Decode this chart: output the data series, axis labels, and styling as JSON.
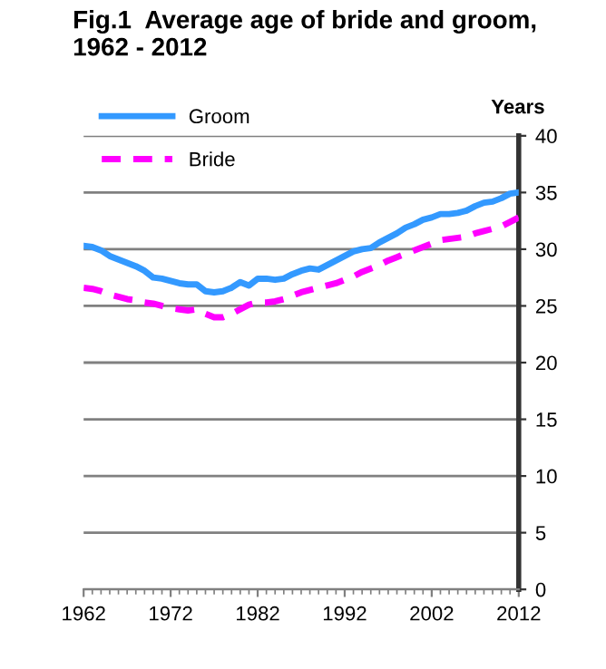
{
  "chart_data": {
    "type": "line",
    "title": "Fig.1  Average age of bride and groom,\n1962 - 2012",
    "ylabel": "Years",
    "x": [
      1962,
      1963,
      1964,
      1965,
      1966,
      1967,
      1968,
      1969,
      1970,
      1971,
      1972,
      1973,
      1974,
      1975,
      1976,
      1977,
      1978,
      1979,
      1980,
      1981,
      1982,
      1983,
      1984,
      1985,
      1986,
      1987,
      1988,
      1989,
      1990,
      1991,
      1992,
      1993,
      1994,
      1995,
      1996,
      1997,
      1998,
      1999,
      2000,
      2001,
      2002,
      2003,
      2004,
      2005,
      2006,
      2007,
      2008,
      2009,
      2010,
      2011,
      2012
    ],
    "series": [
      {
        "name": "Groom",
        "color": "#3399ff",
        "line_style": "solid",
        "values": [
          30.3,
          30.2,
          29.9,
          29.4,
          29.1,
          28.8,
          28.5,
          28.1,
          27.5,
          27.4,
          27.2,
          27.0,
          26.9,
          26.9,
          26.3,
          26.2,
          26.3,
          26.6,
          27.1,
          26.8,
          27.4,
          27.4,
          27.3,
          27.4,
          27.8,
          28.1,
          28.3,
          28.2,
          28.6,
          29.0,
          29.4,
          29.8,
          30.0,
          30.1,
          30.6,
          31.0,
          31.4,
          31.9,
          32.2,
          32.6,
          32.8,
          33.1,
          33.1,
          33.2,
          33.4,
          33.8,
          34.1,
          34.2,
          34.5,
          34.9,
          35.0
        ]
      },
      {
        "name": "Bride",
        "color": "#ff00ff",
        "line_style": "dashed",
        "values": [
          26.6,
          26.5,
          26.3,
          26.0,
          25.8,
          25.6,
          25.5,
          25.3,
          25.2,
          25.0,
          24.8,
          24.7,
          24.6,
          24.7,
          24.3,
          24.0,
          24.0,
          24.3,
          24.7,
          25.1,
          25.3,
          25.3,
          25.4,
          25.6,
          25.9,
          26.2,
          26.4,
          26.6,
          26.8,
          27.0,
          27.3,
          27.6,
          28.0,
          28.3,
          28.6,
          29.0,
          29.3,
          29.6,
          29.9,
          30.2,
          30.5,
          30.8,
          30.9,
          31.0,
          31.1,
          31.4,
          31.6,
          31.8,
          32.0,
          32.4,
          32.8
        ]
      }
    ],
    "xlim": [
      1962,
      2012
    ],
    "xticks": [
      1962,
      1972,
      1982,
      1992,
      2002,
      2012
    ],
    "ylim": [
      0,
      40
    ],
    "yticks": [
      0,
      5,
      10,
      15,
      20,
      25,
      30,
      35,
      40
    ],
    "grid": "y",
    "legend": "top left"
  }
}
